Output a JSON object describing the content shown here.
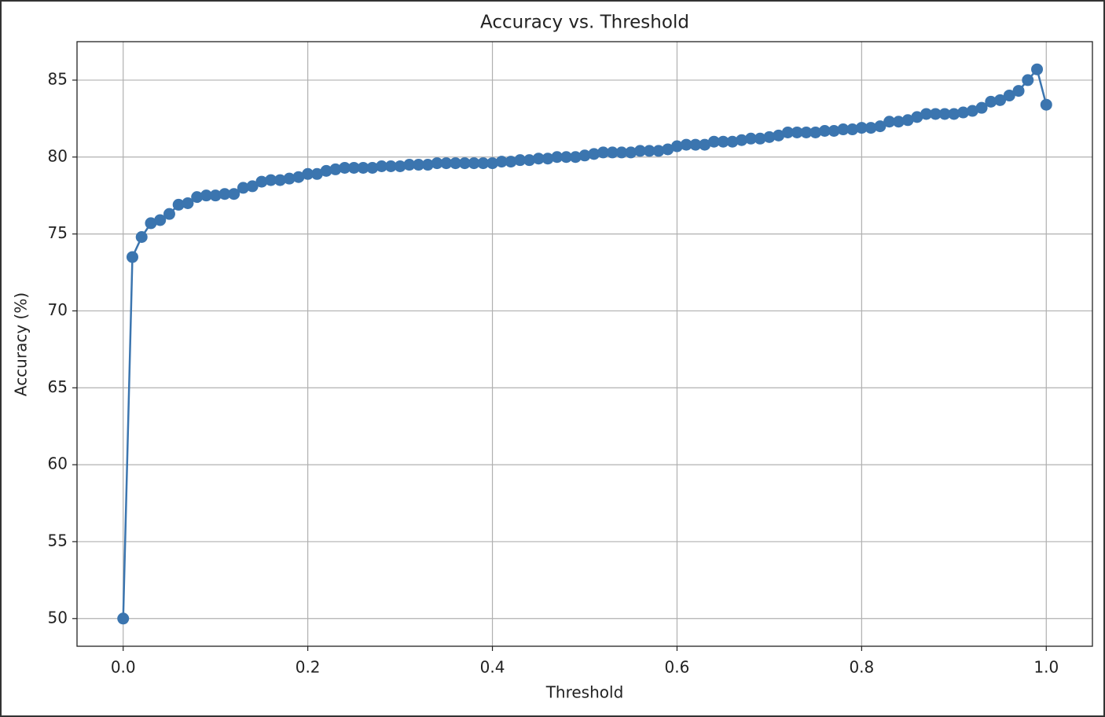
{
  "chart_data": {
    "type": "line",
    "title": "Accuracy vs. Threshold",
    "xlabel": "Threshold",
    "ylabel": "Accuracy (%)",
    "x": [
      0,
      0.01,
      0.02,
      0.03,
      0.04,
      0.05,
      0.06,
      0.07,
      0.08,
      0.09,
      0.1,
      0.11,
      0.12,
      0.13,
      0.14,
      0.15,
      0.16,
      0.17,
      0.18,
      0.19,
      0.2,
      0.21,
      0.22,
      0.23,
      0.24,
      0.25,
      0.26,
      0.27,
      0.28,
      0.29,
      0.3,
      0.31,
      0.32,
      0.33,
      0.34,
      0.35,
      0.36,
      0.37,
      0.38,
      0.39,
      0.4,
      0.41,
      0.42,
      0.43,
      0.44,
      0.45,
      0.46,
      0.47,
      0.48,
      0.49,
      0.5,
      0.51,
      0.52,
      0.53,
      0.54,
      0.55,
      0.56,
      0.57,
      0.58,
      0.59,
      0.6,
      0.61,
      0.62,
      0.63,
      0.64,
      0.65,
      0.66,
      0.67,
      0.68,
      0.69,
      0.7,
      0.71,
      0.72,
      0.73,
      0.74,
      0.75,
      0.76,
      0.77,
      0.78,
      0.79,
      0.8,
      0.81,
      0.82,
      0.83,
      0.84,
      0.85,
      0.86,
      0.87,
      0.88,
      0.89,
      0.9,
      0.91,
      0.92,
      0.93,
      0.94,
      0.95,
      0.96,
      0.97,
      0.98,
      0.99,
      1
    ],
    "series": [
      {
        "color": "#3b75af",
        "marker": "o",
        "values": [
          50.0,
          73.5,
          74.8,
          75.7,
          75.9,
          76.3,
          76.9,
          77.0,
          77.4,
          77.5,
          77.5,
          77.6,
          77.6,
          78.0,
          78.1,
          78.4,
          78.5,
          78.5,
          78.6,
          78.7,
          78.9,
          78.9,
          79.1,
          79.2,
          79.3,
          79.3,
          79.3,
          79.3,
          79.4,
          79.4,
          79.4,
          79.5,
          79.5,
          79.5,
          79.6,
          79.6,
          79.6,
          79.6,
          79.6,
          79.6,
          79.6,
          79.7,
          79.7,
          79.8,
          79.8,
          79.9,
          79.9,
          80.0,
          80.0,
          80.0,
          80.1,
          80.2,
          80.3,
          80.3,
          80.3,
          80.3,
          80.4,
          80.4,
          80.4,
          80.5,
          80.7,
          80.8,
          80.8,
          80.8,
          81.0,
          81.0,
          81.0,
          81.1,
          81.2,
          81.2,
          81.3,
          81.4,
          81.6,
          81.6,
          81.6,
          81.6,
          81.7,
          81.7,
          81.8,
          81.8,
          81.9,
          81.9,
          82.0,
          82.3,
          82.3,
          82.4,
          82.6,
          82.8,
          82.8,
          82.8,
          82.8,
          82.9,
          83.0,
          83.2,
          83.6,
          83.7,
          84.0,
          84.3,
          85.0,
          85.7,
          83.4
        ]
      }
    ],
    "xlim": [
      -0.05,
      1.05
    ],
    "ylim": [
      48.2,
      87.5
    ],
    "xticks": [
      {
        "value": 0,
        "label": "0.0"
      },
      0.2,
      0.4,
      0.6,
      0.8,
      {
        "value": 1,
        "label": "1.0"
      }
    ],
    "yticks": [
      50,
      55,
      60,
      65,
      70,
      75,
      80,
      85
    ],
    "grid": true
  }
}
